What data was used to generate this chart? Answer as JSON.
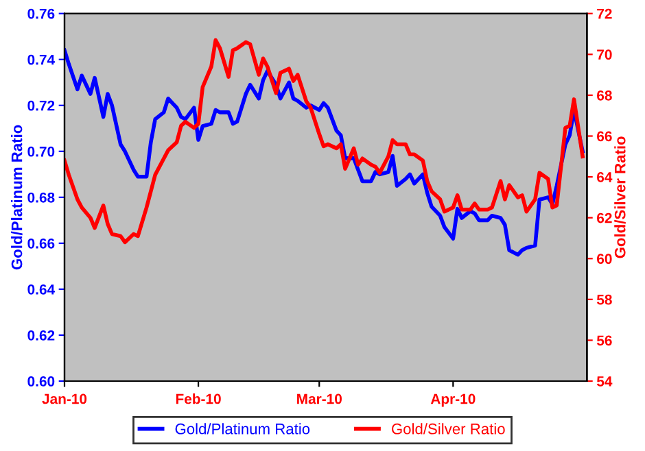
{
  "chart_data": {
    "type": "line",
    "ylabel": "Gold/Platinum Ratio",
    "y2label": "Gold/Silver Ratio",
    "x": [
      "2010-01-01",
      "2010-01-02",
      "2010-01-04",
      "2010-01-05",
      "2010-01-07",
      "2010-01-08",
      "2010-01-10",
      "2010-01-11",
      "2010-01-12",
      "2010-01-14",
      "2010-01-15",
      "2010-01-17",
      "2010-01-18",
      "2010-01-20",
      "2010-01-21",
      "2010-01-22",
      "2010-01-24",
      "2010-01-25",
      "2010-01-27",
      "2010-01-28",
      "2010-01-29",
      "2010-01-31",
      "2010-02-01",
      "2010-02-02",
      "2010-02-04",
      "2010-02-05",
      "2010-02-06",
      "2010-02-08",
      "2010-02-09",
      "2010-02-10",
      "2010-02-12",
      "2010-02-13",
      "2010-02-15",
      "2010-02-16",
      "2010-02-17",
      "2010-02-19",
      "2010-02-20",
      "2010-02-22",
      "2010-02-23",
      "2010-02-24",
      "2010-02-26",
      "2010-02-27",
      "2010-03-01",
      "2010-03-02",
      "2010-03-03",
      "2010-03-05",
      "2010-03-06",
      "2010-03-07",
      "2010-03-09",
      "2010-03-10",
      "2010-03-11",
      "2010-03-13",
      "2010-03-14",
      "2010-03-15",
      "2010-03-17",
      "2010-03-18",
      "2010-03-19",
      "2010-03-21",
      "2010-03-22",
      "2010-03-23",
      "2010-03-25",
      "2010-03-26",
      "2010-03-27",
      "2010-03-29",
      "2010-03-30",
      "2010-04-01",
      "2010-04-02",
      "2010-04-03",
      "2010-04-05",
      "2010-04-06",
      "2010-04-07",
      "2010-04-09",
      "2010-04-10",
      "2010-04-12",
      "2010-04-13",
      "2010-04-14",
      "2010-04-16",
      "2010-04-17",
      "2010-04-18",
      "2010-04-20",
      "2010-04-21",
      "2010-04-23",
      "2010-04-24",
      "2010-04-25",
      "2010-04-27",
      "2010-04-28",
      "2010-04-29",
      "2010-05-01"
    ],
    "series": [
      {
        "name": "Gold/Platinum Ratio",
        "color": "#0000ff",
        "values": [
          0.744,
          0.738,
          0.727,
          0.733,
          0.725,
          0.732,
          0.715,
          0.725,
          0.72,
          0.703,
          0.7,
          0.692,
          0.689,
          0.689,
          0.704,
          0.714,
          0.717,
          0.723,
          0.719,
          0.715,
          0.714,
          0.719,
          0.705,
          0.711,
          0.712,
          0.718,
          0.717,
          0.717,
          0.712,
          0.713,
          0.725,
          0.729,
          0.723,
          0.731,
          0.735,
          0.729,
          0.723,
          0.73,
          0.723,
          0.722,
          0.719,
          0.72,
          0.718,
          0.721,
          0.719,
          0.709,
          0.707,
          0.697,
          0.697,
          0.692,
          0.687,
          0.687,
          0.691,
          0.69,
          0.691,
          0.698,
          0.685,
          0.688,
          0.69,
          0.686,
          0.69,
          0.682,
          0.676,
          0.672,
          0.667,
          0.662,
          0.675,
          0.671,
          0.674,
          0.673,
          0.67,
          0.67,
          0.672,
          0.671,
          0.668,
          0.657,
          0.655,
          0.657,
          0.658,
          0.659,
          0.679,
          0.68,
          0.677,
          0.685,
          0.703,
          0.707,
          0.718,
          0.7
        ]
      },
      {
        "name": "Gold/Silver Ratio",
        "color": "#ff0000",
        "axis": "y2",
        "values": [
          64.8,
          64.1,
          62.9,
          62.5,
          62.0,
          61.5,
          62.6,
          61.7,
          61.2,
          61.1,
          60.8,
          61.2,
          61.1,
          62.5,
          63.3,
          64.1,
          64.9,
          65.3,
          65.7,
          66.5,
          66.7,
          66.4,
          66.6,
          68.4,
          69.4,
          70.7,
          70.3,
          68.9,
          70.2,
          70.3,
          70.6,
          70.5,
          69.0,
          69.8,
          69.4,
          68.1,
          69.1,
          69.3,
          68.7,
          69.0,
          67.7,
          67.4,
          66.1,
          65.5,
          65.6,
          65.4,
          65.6,
          64.4,
          65.4,
          64.6,
          64.9,
          64.6,
          64.5,
          64.2,
          65.0,
          65.8,
          65.6,
          65.6,
          65.1,
          65.1,
          64.8,
          63.8,
          63.3,
          62.9,
          62.3,
          62.5,
          63.1,
          62.4,
          62.4,
          62.7,
          62.4,
          62.4,
          62.5,
          63.8,
          62.9,
          63.6,
          63.0,
          63.1,
          62.3,
          62.9,
          64.2,
          63.9,
          62.5,
          62.6,
          66.4,
          66.5,
          67.8,
          65.0
        ]
      }
    ],
    "xlim": [
      "2010-01-01",
      "2010-05-02"
    ],
    "xticks": [
      {
        "value": "2010-01-01",
        "label": "Jan-10"
      },
      {
        "value": "2010-02-01",
        "label": "Feb-10"
      },
      {
        "value": "2010-03-01",
        "label": "Mar-10"
      },
      {
        "value": "2010-04-01",
        "label": "Apr-10"
      }
    ],
    "ylim": [
      0.6,
      0.76
    ],
    "yticks": [
      {
        "value": 0.6,
        "label": "0.60"
      },
      0.62,
      0.64,
      0.66,
      0.68,
      {
        "value": 0.7,
        "label": "0.70"
      },
      0.72,
      0.74,
      0.76
    ],
    "y2lim": [
      54,
      72
    ],
    "y2ticks": [
      54,
      56,
      58,
      60,
      62,
      64,
      66,
      68,
      70,
      72
    ],
    "grid": false,
    "legend": "bottom",
    "marker": "none",
    "line_style": "solid"
  }
}
